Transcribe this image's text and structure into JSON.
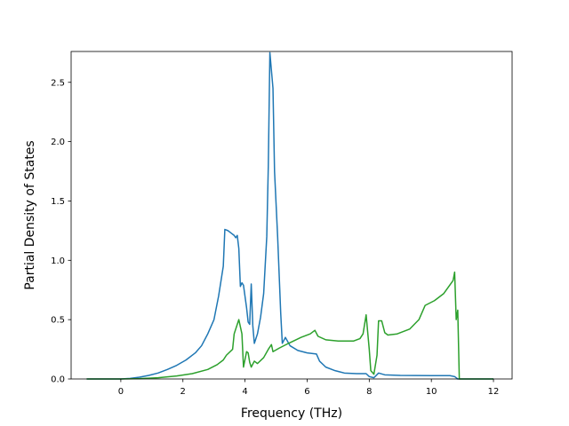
{
  "chart_data": {
    "type": "line",
    "title": "",
    "xlabel": "Frequency (THz)",
    "ylabel": "Partial Density of States",
    "xlim": [
      -1.6,
      12.6
    ],
    "ylim": [
      0,
      2.76
    ],
    "grid": false,
    "legend": "none",
    "xticks": [
      0,
      2,
      4,
      6,
      8,
      10,
      12
    ],
    "xtick_labels": [
      "0",
      "2",
      "4",
      "6",
      "8",
      "10",
      "12"
    ],
    "yticks": [
      0,
      0.5,
      1.0,
      1.5,
      2.0,
      2.5
    ],
    "ytick_labels": [
      "0.0",
      "0.5",
      "1.0",
      "1.5",
      "2.0",
      "2.5"
    ],
    "series": [
      {
        "color": "#1f77b4",
        "points": [
          [
            -1.1,
            0
          ],
          [
            0,
            0
          ],
          [
            0.3,
            0.005
          ],
          [
            0.6,
            0.015
          ],
          [
            0.9,
            0.03
          ],
          [
            1.2,
            0.05
          ],
          [
            1.5,
            0.08
          ],
          [
            1.8,
            0.115
          ],
          [
            2.1,
            0.16
          ],
          [
            2.4,
            0.22
          ],
          [
            2.6,
            0.28
          ],
          [
            2.8,
            0.38
          ],
          [
            3.0,
            0.5
          ],
          [
            3.15,
            0.7
          ],
          [
            3.3,
            0.95
          ],
          [
            3.35,
            1.26
          ],
          [
            3.45,
            1.25
          ],
          [
            3.55,
            1.23
          ],
          [
            3.65,
            1.21
          ],
          [
            3.7,
            1.19
          ],
          [
            3.75,
            1.21
          ],
          [
            3.8,
            1.1
          ],
          [
            3.85,
            0.78
          ],
          [
            3.9,
            0.81
          ],
          [
            3.95,
            0.79
          ],
          [
            4.05,
            0.6
          ],
          [
            4.1,
            0.48
          ],
          [
            4.15,
            0.46
          ],
          [
            4.2,
            0.8
          ],
          [
            4.25,
            0.45
          ],
          [
            4.3,
            0.3
          ],
          [
            4.4,
            0.38
          ],
          [
            4.5,
            0.52
          ],
          [
            4.6,
            0.72
          ],
          [
            4.7,
            1.2
          ],
          [
            4.75,
            1.8
          ],
          [
            4.8,
            2.75
          ],
          [
            4.9,
            2.45
          ],
          [
            4.95,
            1.75
          ],
          [
            5.05,
            1.2
          ],
          [
            5.15,
            0.55
          ],
          [
            5.2,
            0.3
          ],
          [
            5.3,
            0.35
          ],
          [
            5.45,
            0.28
          ],
          [
            5.7,
            0.24
          ],
          [
            6.0,
            0.22
          ],
          [
            6.3,
            0.21
          ],
          [
            6.4,
            0.15
          ],
          [
            6.6,
            0.1
          ],
          [
            6.9,
            0.07
          ],
          [
            7.2,
            0.05
          ],
          [
            7.6,
            0.045
          ],
          [
            7.9,
            0.045
          ],
          [
            8.0,
            0.02
          ],
          [
            8.15,
            0.01
          ],
          [
            8.3,
            0.05
          ],
          [
            8.5,
            0.035
          ],
          [
            9.0,
            0.03
          ],
          [
            10.0,
            0.028
          ],
          [
            10.6,
            0.028
          ],
          [
            10.75,
            0.02
          ],
          [
            10.85,
            0
          ],
          [
            12.0,
            0
          ]
        ]
      },
      {
        "color": "#2ca02c",
        "points": [
          [
            -1.1,
            0
          ],
          [
            0,
            0
          ],
          [
            0.6,
            0.003
          ],
          [
            1.2,
            0.01
          ],
          [
            1.8,
            0.025
          ],
          [
            2.3,
            0.045
          ],
          [
            2.8,
            0.08
          ],
          [
            3.1,
            0.12
          ],
          [
            3.3,
            0.16
          ],
          [
            3.4,
            0.2
          ],
          [
            3.6,
            0.25
          ],
          [
            3.65,
            0.38
          ],
          [
            3.8,
            0.5
          ],
          [
            3.9,
            0.38
          ],
          [
            3.95,
            0.1
          ],
          [
            4.05,
            0.23
          ],
          [
            4.1,
            0.22
          ],
          [
            4.15,
            0.14
          ],
          [
            4.2,
            0.1
          ],
          [
            4.3,
            0.15
          ],
          [
            4.4,
            0.13
          ],
          [
            4.6,
            0.18
          ],
          [
            4.75,
            0.25
          ],
          [
            4.85,
            0.29
          ],
          [
            4.9,
            0.23
          ],
          [
            5.1,
            0.26
          ],
          [
            5.4,
            0.3
          ],
          [
            5.8,
            0.35
          ],
          [
            6.1,
            0.38
          ],
          [
            6.25,
            0.41
          ],
          [
            6.35,
            0.36
          ],
          [
            6.6,
            0.33
          ],
          [
            7.0,
            0.32
          ],
          [
            7.5,
            0.32
          ],
          [
            7.7,
            0.34
          ],
          [
            7.8,
            0.38
          ],
          [
            7.9,
            0.54
          ],
          [
            8.0,
            0.25
          ],
          [
            8.05,
            0.07
          ],
          [
            8.15,
            0.04
          ],
          [
            8.25,
            0.2
          ],
          [
            8.3,
            0.49
          ],
          [
            8.4,
            0.49
          ],
          [
            8.5,
            0.39
          ],
          [
            8.6,
            0.37
          ],
          [
            8.9,
            0.38
          ],
          [
            9.3,
            0.42
          ],
          [
            9.6,
            0.5
          ],
          [
            9.8,
            0.62
          ],
          [
            10.1,
            0.66
          ],
          [
            10.4,
            0.72
          ],
          [
            10.7,
            0.83
          ],
          [
            10.75,
            0.9
          ],
          [
            10.8,
            0.5
          ],
          [
            10.85,
            0.58
          ],
          [
            10.9,
            0
          ],
          [
            12.0,
            0
          ]
        ]
      }
    ]
  }
}
